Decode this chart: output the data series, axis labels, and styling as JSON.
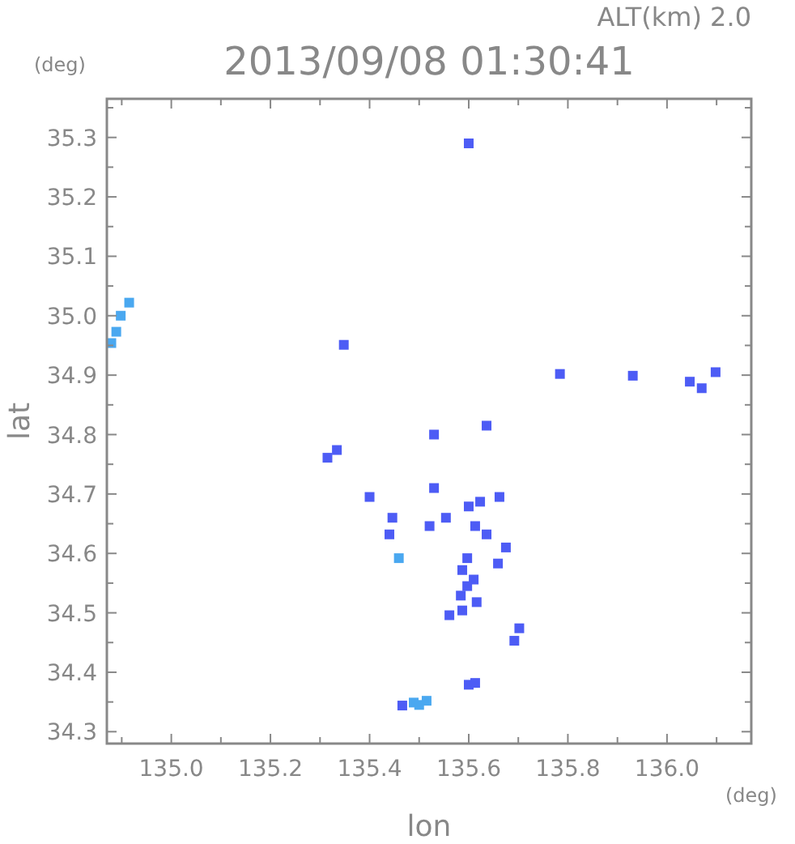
{
  "chart_data": {
    "type": "scatter",
    "title": "2013/09/08 01:30:41",
    "subtitle": "ALT(km) 2.0",
    "xlabel": "lon",
    "ylabel": "lat",
    "annotations": [
      "(deg)",
      "(deg)"
    ],
    "xlim": [
      134.87,
      136.17
    ],
    "ylim": [
      34.28,
      35.365
    ],
    "xticks": [
      {
        "value": 134.9,
        "label": null
      },
      {
        "value": 135,
        "label": "135.0"
      },
      {
        "value": 135.1,
        "label": null
      },
      {
        "value": 135.2,
        "label": "135.2"
      },
      {
        "value": 135.3,
        "label": null
      },
      {
        "value": 135.4,
        "label": "135.4"
      },
      {
        "value": 135.5,
        "label": null
      },
      {
        "value": 135.6,
        "label": "135.6"
      },
      {
        "value": 135.7,
        "label": null
      },
      {
        "value": 135.8,
        "label": "135.8"
      },
      {
        "value": 135.9,
        "label": null
      },
      {
        "value": 136,
        "label": "136.0"
      },
      {
        "value": 136.1,
        "label": null
      }
    ],
    "yticks": [
      {
        "value": 34.3,
        "label": "34.3"
      },
      {
        "value": 34.35,
        "label": null
      },
      {
        "value": 34.4,
        "label": "34.4"
      },
      {
        "value": 34.45,
        "label": null
      },
      {
        "value": 34.5,
        "label": "34.5"
      },
      {
        "value": 34.55,
        "label": null
      },
      {
        "value": 34.6,
        "label": "34.6"
      },
      {
        "value": 34.65,
        "label": null
      },
      {
        "value": 34.7,
        "label": "34.7"
      },
      {
        "value": 34.75,
        "label": null
      },
      {
        "value": 34.8,
        "label": "34.8"
      },
      {
        "value": 34.85,
        "label": null
      },
      {
        "value": 34.9,
        "label": "34.9"
      },
      {
        "value": 34.95,
        "label": null
      },
      {
        "value": 35,
        "label": "35.0"
      },
      {
        "value": 35.05,
        "label": null
      },
      {
        "value": 35.1,
        "label": "35.1"
      },
      {
        "value": 35.15,
        "label": null
      },
      {
        "value": 35.2,
        "label": "35.2"
      },
      {
        "value": 35.25,
        "label": null
      },
      {
        "value": 35.3,
        "label": "35.3"
      },
      {
        "value": 35.35,
        "label": null
      }
    ],
    "grid": false,
    "marker": "square",
    "series": [
      {
        "color": "#4d5cf5",
        "x": [
          135.6,
          135.348,
          135.784,
          135.931,
          136.046,
          136.098,
          136.07,
          135.53,
          135.636,
          135.315,
          135.334,
          135.662,
          135.4,
          135.446,
          135.44,
          135.53,
          135.6,
          135.623,
          135.636,
          135.613,
          135.554,
          135.521,
          135.597,
          135.587,
          135.61,
          135.597,
          135.584,
          135.616,
          135.587,
          135.561,
          135.659,
          135.675,
          135.702,
          135.692,
          135.6,
          135.613,
          135.466
        ],
        "values": [
          35.29,
          34.951,
          34.902,
          34.899,
          34.889,
          34.905,
          34.878,
          34.8,
          34.815,
          34.761,
          34.774,
          34.695,
          34.695,
          34.66,
          34.632,
          34.71,
          34.679,
          34.687,
          34.632,
          34.646,
          34.66,
          34.646,
          34.592,
          34.572,
          34.556,
          34.545,
          34.529,
          34.518,
          34.504,
          34.496,
          34.583,
          34.61,
          34.474,
          34.453,
          34.379,
          34.382,
          34.344
        ]
      },
      {
        "color": "#4aa8f0",
        "x": [
          134.915,
          134.898,
          134.889,
          134.879,
          135.459,
          135.489,
          135.515,
          135.5
        ],
        "values": [
          35.022,
          35.0,
          34.973,
          34.954,
          34.592,
          34.349,
          34.352,
          34.345
        ]
      }
    ]
  }
}
